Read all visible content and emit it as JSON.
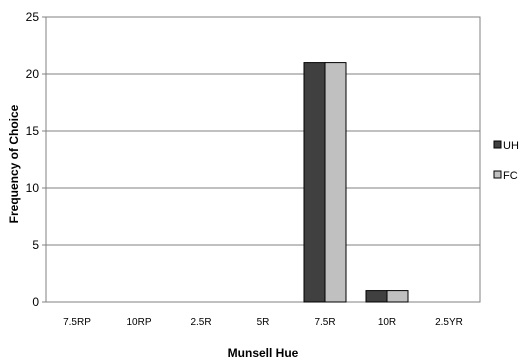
{
  "chart_data": {
    "type": "bar",
    "xlabel": "Munsell Hue",
    "ylabel": "Frequency of Choice",
    "categories": [
      "7.5RP",
      "10RP",
      "2.5R",
      "5R",
      "7.5R",
      "10R",
      "2.5YR"
    ],
    "series": [
      {
        "name": "UH",
        "values": [
          0,
          0,
          0,
          0,
          21,
          1,
          0
        ],
        "color": "#404040"
      },
      {
        "name": "FC",
        "values": [
          0,
          0,
          0,
          0,
          21,
          1,
          0
        ],
        "color": "#c0c0c0"
      }
    ],
    "ylim": [
      0,
      25
    ],
    "yticks": [
      0,
      5,
      10,
      15,
      20,
      25
    ],
    "grid": true,
    "legend_position": "right"
  }
}
